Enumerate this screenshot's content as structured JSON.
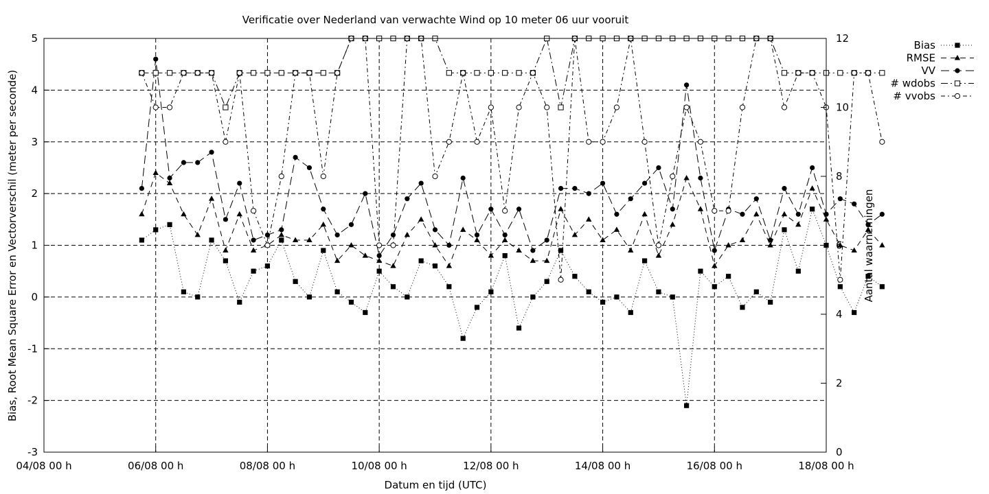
{
  "chart_data": {
    "type": "line",
    "title": "Verificatie over Nederland van verwachte Wind op 10 meter 06 uur vooruit",
    "xlabel": "Datum en tijd (UTC)",
    "ylabel": "Bias, Root Mean Square Error en Vectorverschil (meter per seconde)",
    "y2label": "Aantal waarnemingen",
    "xlim": [
      "04/08 00 h",
      "18/08 00 h"
    ],
    "ylim": [
      -3,
      5
    ],
    "y2lim": [
      0,
      12
    ],
    "grid": true,
    "legend_position": "top-right outside",
    "x_ticks": [
      "04/08 00 h",
      "06/08 00 h",
      "08/08 00 h",
      "10/08 00 h",
      "12/08 00 h",
      "14/08 00 h",
      "16/08 00 h",
      "18/08 00 h"
    ],
    "y_ticks": [
      "-3",
      "-2",
      "-1",
      "0",
      "1",
      "2",
      "3",
      "4",
      "5"
    ],
    "y2_ticks": [
      "0",
      "2",
      "4",
      "6",
      "8",
      "10",
      "12"
    ],
    "x_start_label": "05/08 18 h",
    "x_step_hours": 6,
    "series": [
      {
        "name": "Bias",
        "axis": "y1",
        "marker": "square-filled",
        "dash": "1,3",
        "values": [
          1.1,
          1.3,
          1.4,
          0.1,
          0.0,
          1.1,
          0.7,
          -0.1,
          0.5,
          0.6,
          1.1,
          0.3,
          0.0,
          0.9,
          0.1,
          -0.1,
          -0.3,
          0.5,
          0.2,
          0.0,
          0.7,
          0.6,
          0.2,
          -0.8,
          -0.2,
          0.1,
          0.8,
          -0.6,
          0.0,
          0.3,
          0.9,
          0.4,
          0.1,
          -0.1,
          0.0,
          -0.3,
          0.7,
          0.1,
          0.0,
          -2.1,
          0.5,
          0.2,
          0.4,
          -0.2,
          0.1,
          -0.1,
          1.3,
          0.5,
          1.7,
          1.0,
          0.2,
          -0.3,
          0.4,
          0.2
        ]
      },
      {
        "name": "RMSE",
        "axis": "y1",
        "marker": "triangle-filled",
        "dash": "8,6",
        "values": [
          1.6,
          2.4,
          2.2,
          1.6,
          1.2,
          1.9,
          0.9,
          1.6,
          0.9,
          1.0,
          1.2,
          1.1,
          1.1,
          1.4,
          0.7,
          1.0,
          0.8,
          0.7,
          0.6,
          1.2,
          1.5,
          1.0,
          0.6,
          1.3,
          1.1,
          0.8,
          1.1,
          0.9,
          0.7,
          0.7,
          1.7,
          1.2,
          1.5,
          1.1,
          1.3,
          0.9,
          1.6,
          0.8,
          1.4,
          2.3,
          1.7,
          0.6,
          1.0,
          1.1,
          1.6,
          1.0,
          1.6,
          1.4,
          2.1,
          1.5,
          1.0,
          0.9,
          1.3,
          1.0
        ]
      },
      {
        "name": "VV",
        "axis": "y1",
        "marker": "circle-filled",
        "dash": "12,6",
        "values": [
          2.1,
          4.6,
          2.3,
          2.6,
          2.6,
          2.8,
          1.5,
          2.2,
          1.1,
          1.2,
          1.3,
          2.7,
          2.5,
          1.7,
          1.2,
          1.4,
          2.0,
          0.8,
          1.2,
          1.9,
          2.2,
          1.3,
          1.0,
          2.3,
          1.2,
          1.7,
          1.2,
          1.7,
          0.9,
          1.1,
          2.1,
          2.1,
          2.0,
          2.2,
          1.6,
          1.9,
          2.2,
          2.5,
          1.7,
          4.1,
          2.3,
          0.9,
          1.7,
          1.6,
          1.9,
          1.1,
          2.1,
          1.6,
          2.5,
          1.6,
          1.9,
          1.8,
          1.4,
          1.6
        ]
      },
      {
        "name": "# wdobs",
        "axis": "y2",
        "marker": "square-open",
        "dash": "10,4,2,4",
        "values": [
          11,
          11,
          11,
          11,
          11,
          11,
          10,
          11,
          11,
          11,
          11,
          11,
          11,
          11,
          11,
          12,
          12,
          12,
          12,
          12,
          12,
          12,
          11,
          11,
          11,
          11,
          11,
          11,
          11,
          12,
          10,
          12,
          12,
          12,
          12,
          12,
          12,
          12,
          12,
          12,
          12,
          12,
          12,
          12,
          12,
          12,
          11,
          11,
          11,
          11,
          11,
          11,
          11,
          11
        ]
      },
      {
        "name": "# vvobs",
        "axis": "y2",
        "marker": "circle-open",
        "dash": "6,4,2,4",
        "values": [
          11,
          10,
          10,
          11,
          11,
          11,
          9,
          11,
          7,
          6,
          8,
          11,
          11,
          8,
          11,
          12,
          12,
          6,
          6,
          12,
          12,
          8,
          9,
          11,
          9,
          10,
          7,
          10,
          11,
          10,
          5,
          12,
          9,
          9,
          10,
          12,
          9,
          6,
          8,
          10,
          9,
          7,
          7,
          10,
          12,
          12,
          10,
          11,
          11,
          10,
          5,
          11,
          11,
          9
        ]
      }
    ]
  }
}
